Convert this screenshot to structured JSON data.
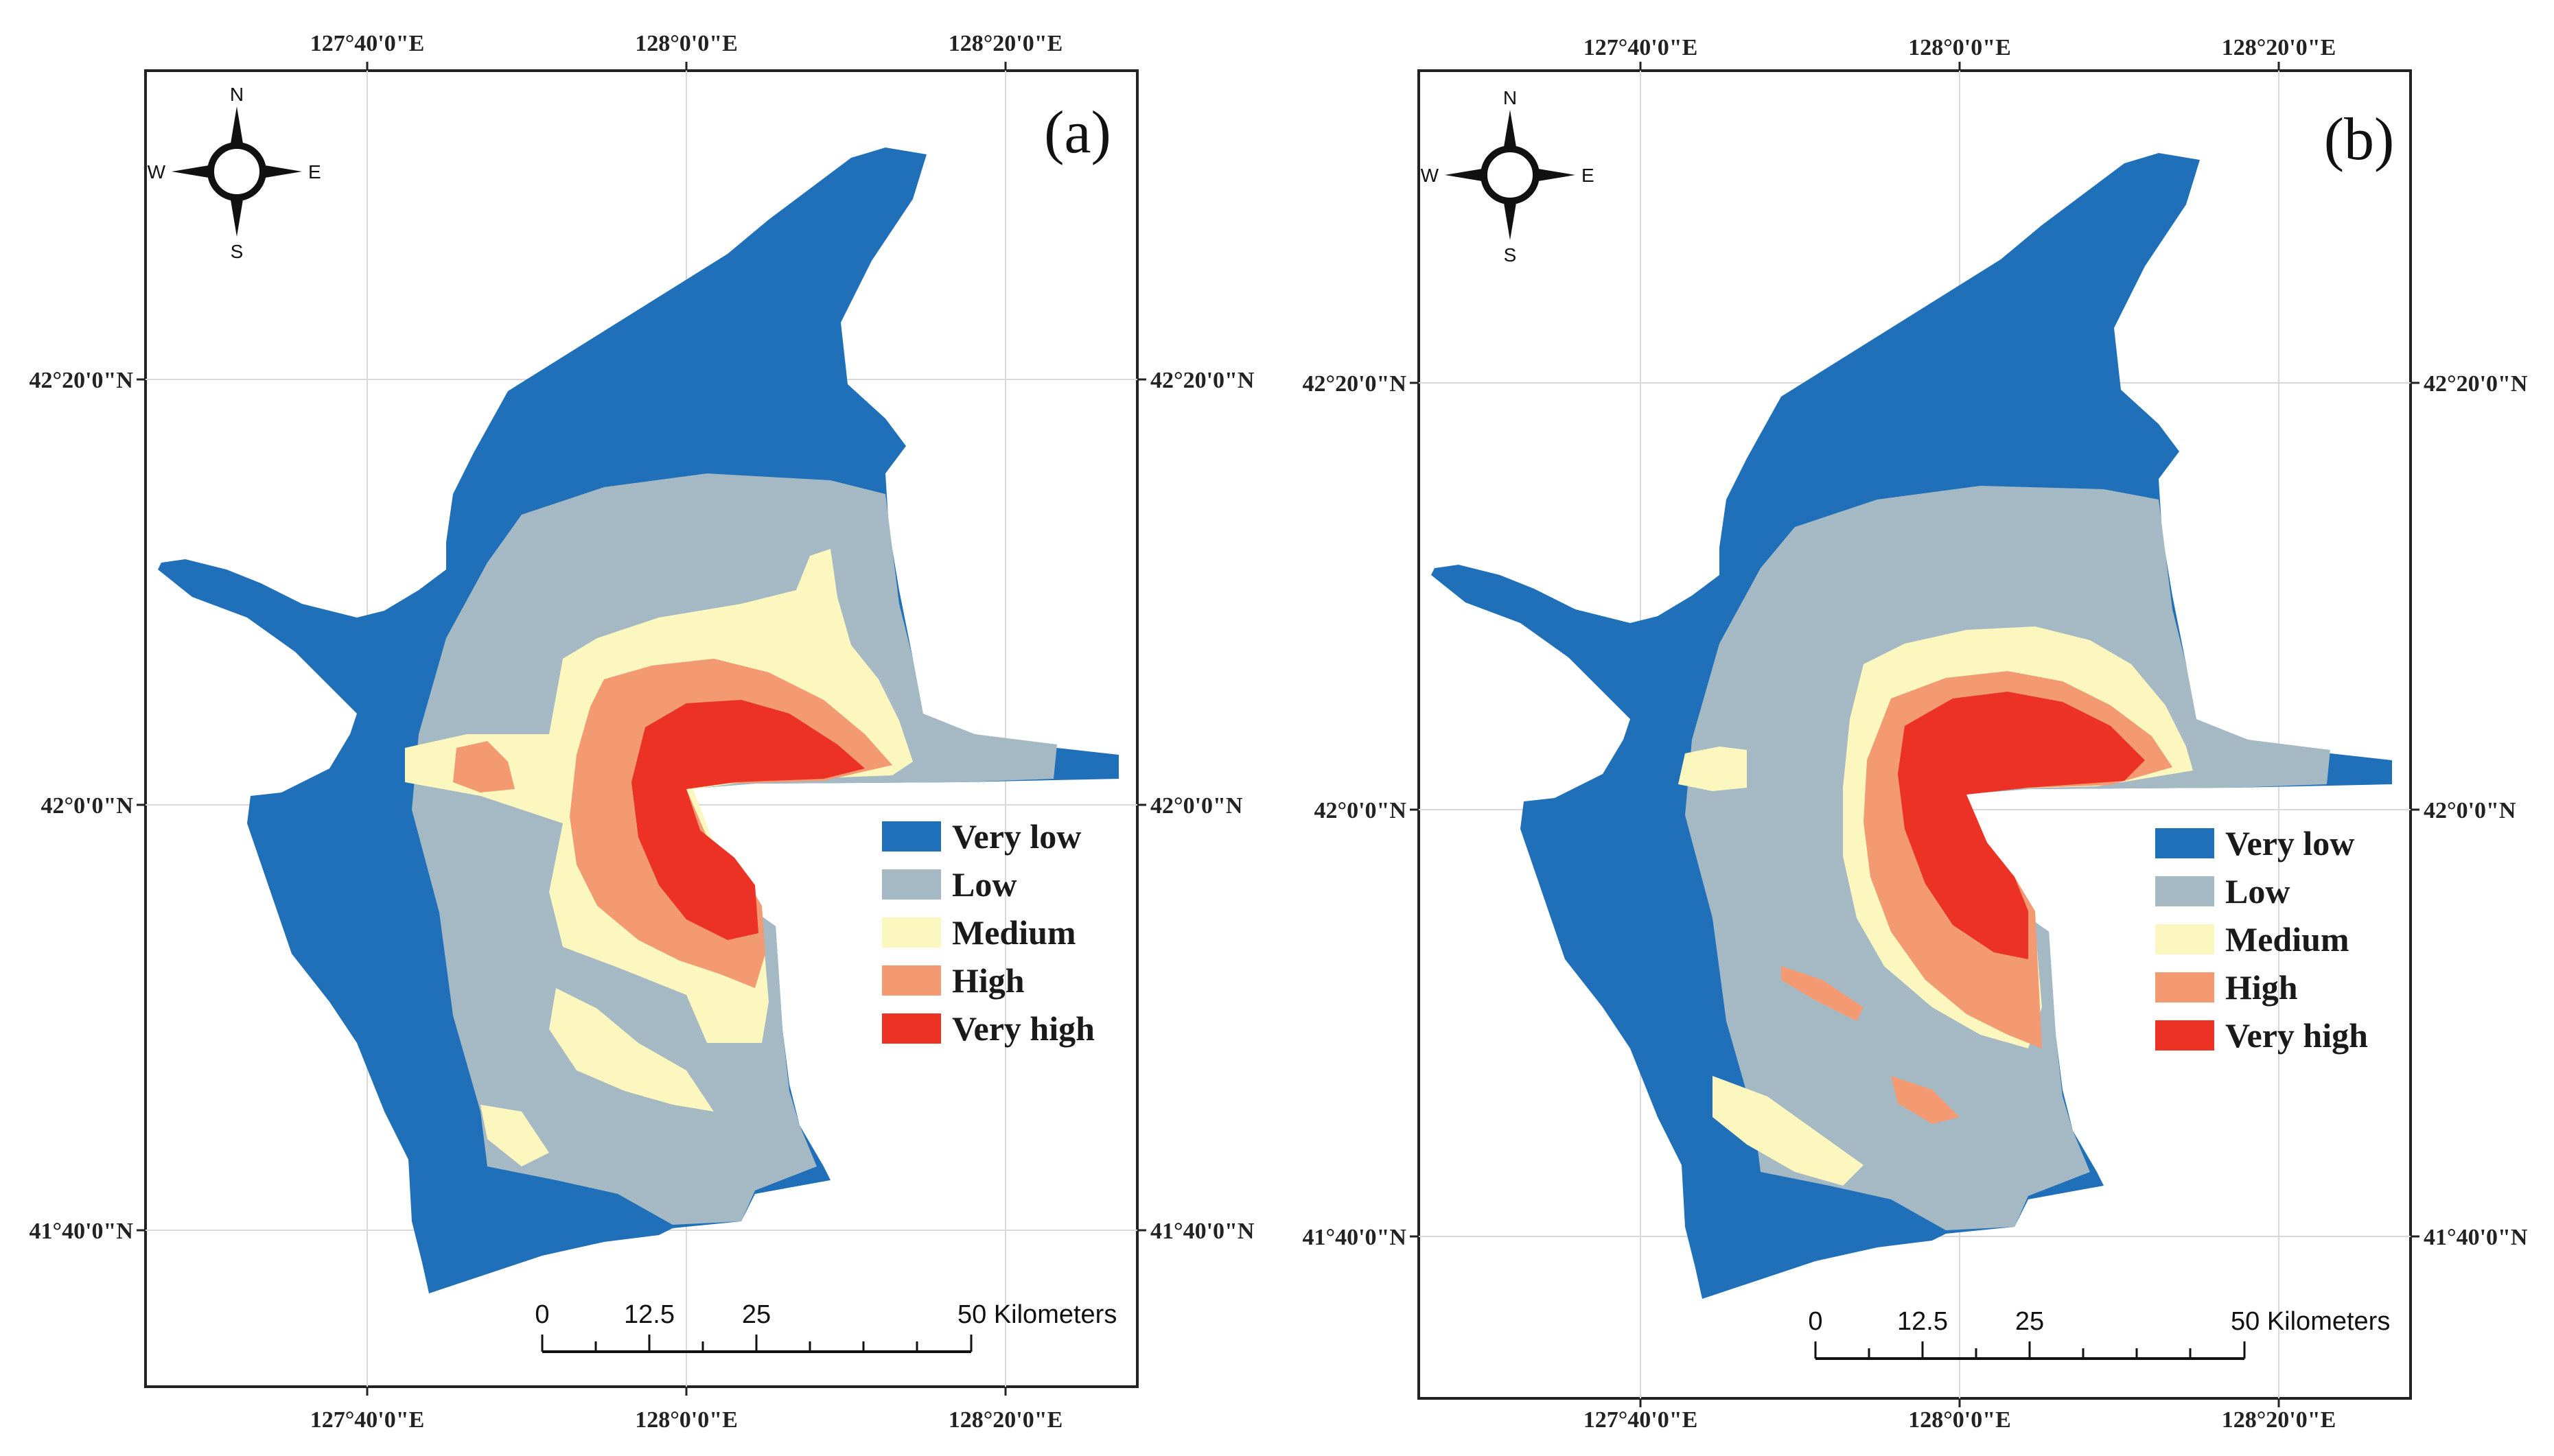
{
  "colors": {
    "very_low": "#1f70b8",
    "low": "#a5b9c4",
    "medium": "#fbf7be",
    "high": "#f39a72",
    "very_high": "#ec3224"
  },
  "panels": [
    {
      "label": "(a)",
      "top_ticks": [
        "127°40'0\"E",
        "128°0'0\"E",
        "128°20'0\"E"
      ],
      "bottom_ticks": [
        "127°40'0\"E",
        "128°0'0\"E",
        "128°20'0\"E"
      ],
      "left_ticks": [
        "42°20'0\"N",
        "42°0'0\"N",
        "41°40'0\"N"
      ],
      "right_ticks": [
        "42°20'0\"N",
        "42°0'0\"N",
        "41°40'0\"N"
      ]
    },
    {
      "label": "(b)",
      "top_ticks": [
        "127°40'0\"E",
        "128°0'0\"E",
        "128°20'0\"E"
      ],
      "bottom_ticks": [
        "127°40'0\"E",
        "128°0'0\"E",
        "128°20'0\"E"
      ],
      "left_ticks": [
        "42°20'0\"N",
        "42°0'0\"N",
        "41°40'0\"N"
      ],
      "right_ticks": [
        "42°20'0\"N",
        "42°0'0\"N",
        "41°40'0\"N"
      ]
    }
  ],
  "legend": [
    "Very low",
    "Low",
    "Medium",
    "High",
    "Very high"
  ],
  "compass": {
    "north": "N",
    "south": "S",
    "east": "E",
    "west": "W",
    "icon": "north-arrow-icon"
  },
  "scale_bar": {
    "labels": [
      "0",
      "12.5",
      "25"
    ],
    "end_label": "50 Kilometers"
  }
}
